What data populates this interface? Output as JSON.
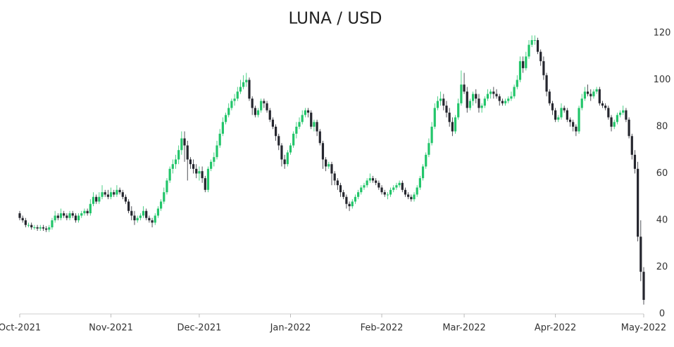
{
  "chart_data": {
    "type": "candlestick",
    "title": "LUNA / USD",
    "up_color": "#22c56a",
    "down_color": "#25262e",
    "ylim": [
      0,
      120
    ],
    "yticks": [
      0,
      20,
      40,
      60,
      80,
      100,
      120
    ],
    "categories": [
      "Oct-2021",
      null,
      null,
      null,
      null,
      null,
      null,
      null,
      null,
      null,
      null,
      null,
      null,
      null,
      null,
      null,
      null,
      null,
      null,
      null,
      null,
      null,
      null,
      null,
      null,
      null,
      null,
      null,
      null,
      null,
      null,
      "Nov-2021",
      null,
      null,
      null,
      null,
      null,
      null,
      null,
      null,
      null,
      null,
      null,
      null,
      null,
      null,
      null,
      null,
      null,
      null,
      null,
      null,
      null,
      null,
      null,
      null,
      null,
      null,
      null,
      null,
      null,
      "Dec-2021",
      null,
      null,
      null,
      null,
      null,
      null,
      null,
      null,
      null,
      null,
      null,
      null,
      null,
      null,
      null,
      null,
      null,
      null,
      null,
      null,
      null,
      null,
      null,
      null,
      null,
      null,
      null,
      null,
      null,
      null,
      "Jan-2022",
      null,
      null,
      null,
      null,
      null,
      null,
      null,
      null,
      null,
      null,
      null,
      null,
      null,
      null,
      null,
      null,
      null,
      null,
      null,
      null,
      null,
      null,
      null,
      null,
      null,
      null,
      null,
      null,
      null,
      null,
      "Feb-2022",
      null,
      null,
      null,
      null,
      null,
      null,
      null,
      null,
      null,
      null,
      null,
      null,
      null,
      null,
      null,
      null,
      null,
      null,
      null,
      null,
      null,
      null,
      null,
      null,
      null,
      null,
      null,
      "Mar-2022",
      null,
      null,
      null,
      null,
      null,
      null,
      null,
      null,
      null,
      null,
      null,
      null,
      null,
      null,
      null,
      null,
      null,
      null,
      null,
      null,
      null,
      null,
      null,
      null,
      null,
      null,
      null,
      null,
      null,
      null,
      "Apr-2022",
      null,
      null,
      null,
      null,
      null,
      null,
      null,
      null,
      null,
      null,
      null,
      null,
      null,
      null,
      null,
      null,
      null,
      null,
      null,
      null,
      null,
      null,
      null,
      null,
      null,
      null,
      null,
      null,
      null,
      "May-2022"
    ],
    "open": [
      43,
      41,
      40,
      38,
      38,
      37,
      37,
      36.5,
      37,
      36.5,
      36,
      37,
      40,
      42,
      41,
      43,
      42,
      41,
      43,
      42,
      40,
      42,
      43,
      44,
      43,
      47,
      50,
      48,
      50,
      52,
      51,
      50,
      52,
      51,
      53,
      52,
      50,
      48,
      44,
      42,
      40,
      41,
      42,
      44,
      41,
      40,
      39,
      42,
      45,
      48,
      52,
      57,
      62,
      64,
      66,
      70,
      75,
      72,
      66,
      64,
      62,
      60,
      61,
      58,
      53,
      62,
      65,
      67,
      72,
      77,
      82,
      85,
      88,
      91,
      92,
      95,
      97,
      99,
      100,
      92,
      88,
      85,
      87,
      91,
      90,
      87,
      83,
      80,
      76,
      72,
      66,
      64,
      69,
      72,
      77,
      80,
      82,
      85,
      87,
      86,
      80,
      82,
      78,
      73,
      66,
      63,
      64,
      60,
      57,
      55,
      52,
      50,
      47,
      46,
      48,
      50,
      52,
      54,
      55,
      57,
      58,
      57,
      56,
      54,
      52,
      51,
      51,
      53,
      54,
      55,
      56,
      53,
      51,
      50,
      49,
      51,
      54,
      58,
      63,
      68,
      73,
      80,
      88,
      91,
      92,
      89,
      86,
      82,
      78,
      84,
      90,
      98,
      95,
      88,
      91,
      94,
      92,
      88,
      89,
      92,
      94,
      95,
      94,
      93,
      91,
      90,
      91,
      92,
      93,
      97,
      100,
      108,
      105,
      110,
      115,
      117,
      117,
      112,
      108,
      102,
      95,
      90,
      87,
      83,
      84,
      88,
      87,
      83,
      82,
      80,
      78,
      88,
      92,
      95,
      94,
      93,
      95,
      96,
      90,
      89,
      88,
      84,
      80,
      82,
      85,
      86,
      87,
      83,
      76,
      68,
      62,
      33,
      18
    ],
    "high": [
      44,
      42,
      41,
      39,
      39,
      38,
      38,
      38,
      38,
      37.5,
      38,
      41,
      44,
      43,
      45,
      44,
      43,
      44,
      44,
      43,
      43,
      44,
      45,
      45,
      49,
      52,
      51,
      52,
      55,
      53,
      53,
      54,
      53,
      55,
      54,
      53,
      51,
      49,
      46,
      44,
      42,
      43,
      46,
      45,
      42,
      41,
      43,
      46,
      49,
      54,
      58,
      63,
      66,
      68,
      72,
      78,
      78,
      74,
      67,
      66,
      64,
      63,
      63,
      59,
      63,
      66,
      69,
      74,
      79,
      84,
      86,
      90,
      92,
      94,
      97,
      100,
      102,
      103,
      101,
      93,
      89,
      88,
      92,
      92,
      91,
      88,
      84,
      81,
      77,
      73,
      68,
      70,
      73,
      78,
      82,
      84,
      87,
      88,
      88,
      87,
      83,
      83,
      79,
      74,
      67,
      65,
      65,
      61,
      58,
      56,
      53,
      51,
      48,
      49,
      51,
      53,
      55,
      56,
      58,
      60,
      59,
      58,
      57,
      55,
      53,
      52,
      54,
      55,
      56,
      57,
      57,
      54,
      52,
      51,
      52,
      55,
      59,
      64,
      69,
      75,
      82,
      90,
      93,
      95,
      94,
      91,
      88,
      84,
      85,
      92,
      104,
      103,
      97,
      92,
      95,
      96,
      94,
      90,
      93,
      96,
      96,
      97,
      96,
      94,
      92,
      92,
      93,
      95,
      98,
      102,
      110,
      110,
      112,
      117,
      119,
      119,
      118,
      113,
      110,
      103,
      96,
      91,
      88,
      85,
      90,
      89,
      88,
      84,
      83,
      81,
      89,
      94,
      97,
      98,
      96,
      96,
      97,
      97,
      91,
      90,
      89,
      85,
      83,
      86,
      87,
      89,
      88,
      84,
      77,
      70,
      65,
      40,
      20
    ],
    "low": [
      40,
      39,
      37,
      37,
      36,
      36,
      35.5,
      35.5,
      35.5,
      35,
      35,
      36,
      39,
      40,
      40,
      41,
      40,
      40,
      41,
      39,
      39,
      41,
      42,
      42,
      42,
      46,
      47,
      47,
      49,
      50,
      49,
      49,
      50,
      50,
      51,
      49,
      47,
      43,
      40,
      38,
      39,
      40,
      41,
      40,
      39,
      37,
      38,
      41,
      44,
      47,
      51,
      56,
      60,
      62,
      64,
      68,
      65,
      57,
      62,
      60,
      58,
      57,
      56,
      52,
      52,
      61,
      63,
      66,
      71,
      76,
      81,
      84,
      87,
      89,
      91,
      94,
      96,
      97,
      91,
      85,
      84,
      84,
      86,
      88,
      86,
      82,
      79,
      74,
      70,
      63,
      62,
      63,
      68,
      71,
      75,
      79,
      81,
      84,
      84,
      79,
      78,
      76,
      72,
      62,
      61,
      62,
      55,
      55,
      53,
      50,
      49,
      45,
      44,
      45,
      47,
      49,
      51,
      53,
      54,
      56,
      56,
      55,
      53,
      51,
      50,
      49,
      50,
      52,
      53,
      54,
      52,
      50,
      49,
      48,
      48,
      50,
      53,
      57,
      62,
      67,
      72,
      79,
      87,
      89,
      87,
      84,
      80,
      76,
      77,
      83,
      89,
      94,
      86,
      87,
      89,
      90,
      86,
      86,
      88,
      91,
      92,
      92,
      92,
      89,
      89,
      89,
      90,
      91,
      92,
      96,
      99,
      103,
      104,
      109,
      114,
      115,
      111,
      106,
      100,
      93,
      89,
      85,
      82,
      82,
      83,
      86,
      82,
      80,
      78,
      76,
      77,
      87,
      91,
      93,
      91,
      92,
      94,
      89,
      88,
      87,
      83,
      78,
      79,
      81,
      84,
      85,
      82,
      75,
      66,
      60,
      31,
      14,
      4
    ],
    "close": [
      41,
      40,
      38,
      38,
      37,
      37,
      36.5,
      37,
      36.5,
      36,
      37,
      40,
      42,
      41,
      43,
      42,
      41,
      43,
      42,
      40,
      42,
      43,
      44,
      43,
      47,
      50,
      48,
      50,
      52,
      51,
      50,
      52,
      51,
      53,
      52,
      50,
      48,
      44,
      42,
      40,
      41,
      42,
      44,
      41,
      40,
      39,
      42,
      45,
      48,
      52,
      57,
      62,
      64,
      66,
      70,
      75,
      72,
      66,
      64,
      62,
      60,
      61,
      58,
      53,
      62,
      65,
      67,
      72,
      77,
      82,
      85,
      88,
      91,
      92,
      95,
      97,
      99,
      100,
      92,
      88,
      85,
      87,
      91,
      90,
      87,
      83,
      80,
      76,
      72,
      66,
      64,
      69,
      72,
      77,
      80,
      82,
      85,
      87,
      86,
      80,
      82,
      78,
      73,
      66,
      63,
      64,
      60,
      57,
      55,
      52,
      50,
      47,
      46,
      48,
      50,
      52,
      54,
      55,
      57,
      58,
      57,
      56,
      54,
      52,
      51,
      51,
      53,
      54,
      55,
      56,
      53,
      51,
      50,
      49,
      51,
      54,
      58,
      63,
      68,
      73,
      80,
      88,
      91,
      92,
      89,
      86,
      82,
      78,
      84,
      90,
      98,
      95,
      88,
      91,
      94,
      92,
      88,
      89,
      92,
      94,
      95,
      94,
      93,
      91,
      90,
      91,
      92,
      93,
      97,
      100,
      108,
      105,
      110,
      115,
      117,
      117,
      112,
      108,
      102,
      95,
      90,
      87,
      83,
      84,
      88,
      87,
      83,
      82,
      80,
      78,
      88,
      92,
      95,
      94,
      93,
      95,
      96,
      90,
      89,
      88,
      84,
      80,
      82,
      85,
      86,
      87,
      83,
      76,
      68,
      62,
      33,
      18,
      6
    ]
  }
}
